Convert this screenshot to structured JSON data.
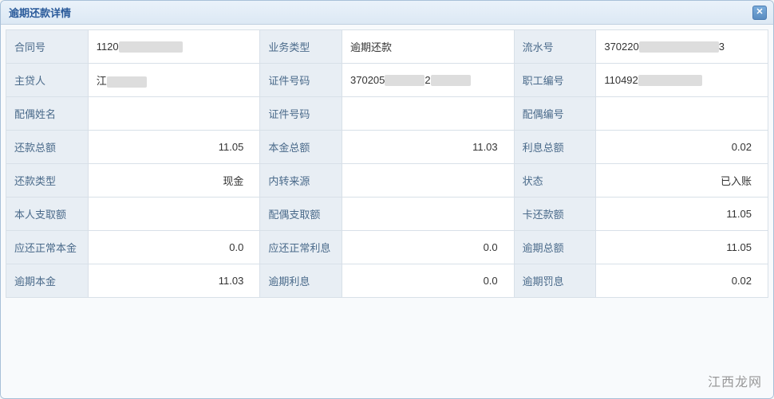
{
  "dialog": {
    "title": "逾期还款详情"
  },
  "fields": {
    "contract_no_label": "合同号",
    "contract_no_prefix": "1120",
    "biz_type_label": "业务类型",
    "biz_type_value": "逾期还款",
    "serial_no_label": "流水号",
    "serial_no_prefix": "370220",
    "serial_no_suffix": "3",
    "borrower_label": "主贷人",
    "borrower_prefix": "江",
    "id_no_label": "证件号码",
    "id_no_prefix": "370205",
    "id_no_mid": "2",
    "emp_no_label": "职工编号",
    "emp_no_prefix": "110492",
    "spouse_name_label": "配偶姓名",
    "spouse_name_value": "",
    "spouse_id_label": "证件号码",
    "spouse_id_value": "",
    "spouse_no_label": "配偶编号",
    "spouse_no_value": "",
    "repay_total_label": "还款总额",
    "repay_total_value": "11.05",
    "principal_total_label": "本金总额",
    "principal_total_value": "11.03",
    "interest_total_label": "利息总额",
    "interest_total_value": "0.02",
    "repay_type_label": "还款类型",
    "repay_type_value": "现金",
    "transfer_src_label": "内转来源",
    "transfer_src_value": "",
    "status_label": "状态",
    "status_value": "已入账",
    "self_draw_label": "本人支取额",
    "self_draw_value": "",
    "spouse_draw_label": "配偶支取额",
    "spouse_draw_value": "",
    "card_repay_label": "卡还款额",
    "card_repay_value": "11.05",
    "due_principal_label": "应还正常本金",
    "due_principal_value": "0.0",
    "due_interest_label": "应还正常利息",
    "due_interest_value": "0.0",
    "overdue_total_label": "逾期总额",
    "overdue_total_value": "11.05",
    "overdue_principal_label": "逾期本金",
    "overdue_principal_value": "11.03",
    "overdue_interest_label": "逾期利息",
    "overdue_interest_value": "0.0",
    "overdue_penalty_label": "逾期罚息",
    "overdue_penalty_value": "0.02"
  },
  "watermark": "江西龙网",
  "colors": {
    "header_text": "#2a5a9a",
    "label_bg": "#e8eef4",
    "label_text": "#4a6a8a",
    "border": "#d8e0e8"
  }
}
